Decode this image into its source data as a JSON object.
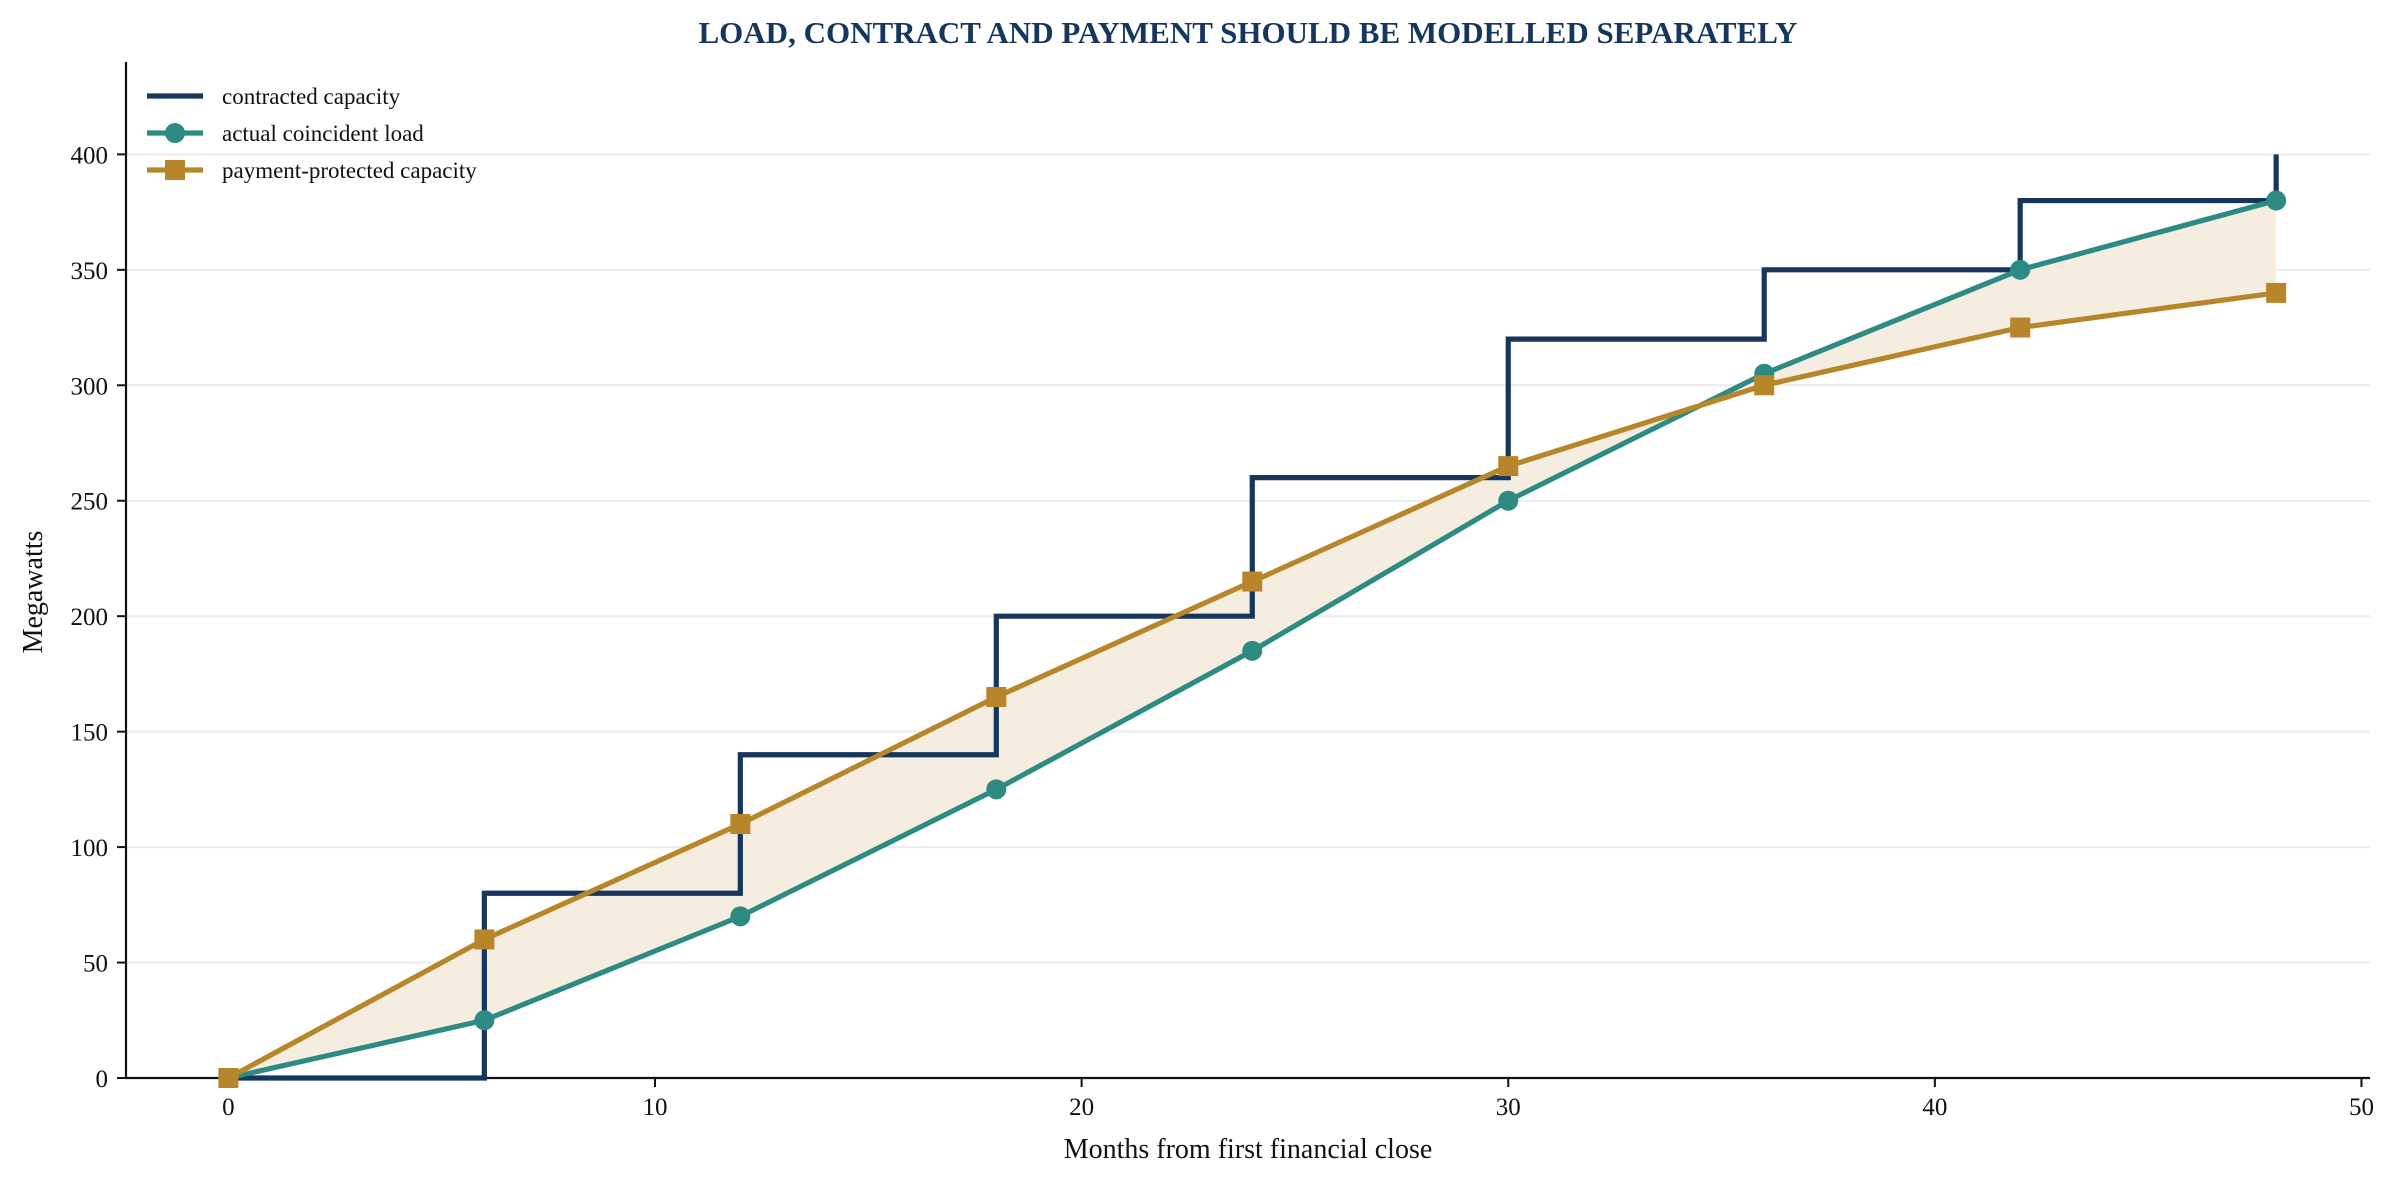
{
  "chart_data": {
    "type": "line",
    "title": "LOAD, CONTRACT AND PAYMENT SHOULD BE MODELLED SEPARATELY",
    "xlabel": "Months from first financial close",
    "ylabel": "Megawatts",
    "xlim": [
      -2.4,
      50.2
    ],
    "ylim": [
      0,
      440
    ],
    "x_ticks": [
      0,
      10,
      20,
      30,
      40,
      50
    ],
    "y_ticks": [
      0,
      50,
      100,
      150,
      200,
      250,
      300,
      350,
      400
    ],
    "grid": "horizontal",
    "legend_position": "top-left",
    "fill_between": {
      "upper": "payment-protected capacity",
      "lower": "actual coincident load",
      "color": "#f5eee0"
    },
    "series": [
      {
        "name": "contracted capacity",
        "style": "step-post",
        "marker": "none",
        "color": "#17365d",
        "x": [
          0,
          6,
          12,
          18,
          24,
          30,
          36,
          42,
          48
        ],
        "y": [
          0,
          80,
          140,
          200,
          260,
          320,
          350,
          380,
          400
        ]
      },
      {
        "name": "actual coincident load",
        "style": "line",
        "marker": "circle",
        "color": "#2e8b84",
        "x": [
          0,
          6,
          12,
          18,
          24,
          30,
          36,
          42,
          48
        ],
        "y": [
          0,
          25,
          70,
          125,
          185,
          250,
          305,
          350,
          380
        ]
      },
      {
        "name": "payment-protected capacity",
        "style": "line",
        "marker": "square",
        "color": "#b8862a",
        "x": [
          0,
          6,
          12,
          18,
          24,
          30,
          36,
          42,
          48
        ],
        "y": [
          0,
          60,
          110,
          165,
          215,
          265,
          300,
          325,
          340
        ]
      }
    ]
  }
}
